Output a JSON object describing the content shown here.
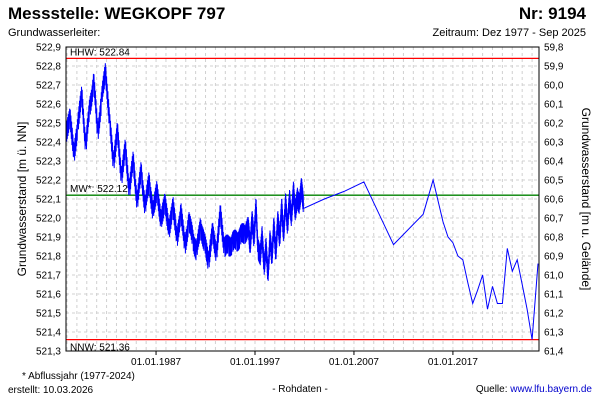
{
  "header": {
    "title": "Messstelle: WEGKOPF 797",
    "nr": "Nr: 9194",
    "aquifer_label": "Grundwasserleiter:",
    "period": "Zeitraum: Dez 1977 - Sep 2025"
  },
  "footer": {
    "footnote": "* Abflussjahr (1977-2024)",
    "created_label": "erstellt:",
    "created_date": "10.03.2026",
    "raw_note": "- Rohdaten -",
    "source_label": "Quelle:",
    "source_url": "www.lfu.bayern.de"
  },
  "chart_data": {
    "type": "line",
    "title": "Messstelle: WEGKOPF 797",
    "ylabel_left": "Grundwasserstand [m ü. NN]",
    "ylabel_right": "Grundwasserstand [m u. Gelände]",
    "x_range": [
      1977.9,
      2025.7
    ],
    "ylim": [
      521.3,
      522.9
    ],
    "x_ticks": [
      "01.01.1987",
      "01.01.1997",
      "01.01.2007",
      "01.01.2017"
    ],
    "y_ticks_left": [
      "521,3",
      "521,4",
      "521,5",
      "521,6",
      "521,7",
      "521,8",
      "521,9",
      "522,0",
      "522,1",
      "522,2",
      "522,3",
      "522,4",
      "522,5",
      "522,6",
      "522,7",
      "522,8",
      "522,9"
    ],
    "y_ticks_right": [
      "61,4",
      "61,3",
      "61,2",
      "61,1",
      "61,0",
      "60,9",
      "60,8",
      "60,7",
      "60,6",
      "60,5",
      "60,4",
      "60,3",
      "60,2",
      "60,1",
      "60,0",
      "59,9",
      "59,8"
    ],
    "grid": true,
    "colors": {
      "series": "#0000ff",
      "hhw": "#ff0000",
      "mw": "#008000",
      "nnw": "#ff0000",
      "grid": "#d0d0d0"
    },
    "reference_lines": [
      {
        "name": "HHW",
        "label": "HHW: 522.84",
        "value": 522.84
      },
      {
        "name": "MW",
        "label": "MW*: 522.12",
        "value": 522.12
      },
      {
        "name": "NNW",
        "label": "NNW: 521.36",
        "value": 521.36
      }
    ],
    "series": [
      {
        "x": [
          1977.9,
          1978.3,
          1978.7,
          1979.1,
          1979.5,
          1979.9,
          1980.3,
          1980.7,
          1981.1,
          1981.5,
          1981.9,
          1982.3,
          1982.7,
          1983.1,
          1983.5,
          1983.9,
          1984.3,
          1984.7,
          1985.1,
          1985.5,
          1985.9,
          1986.3,
          1986.7,
          1987.1,
          1987.5,
          1987.9,
          1988.3,
          1988.7,
          1989.1,
          1989.5,
          1989.9,
          1990.3,
          1990.7,
          1991.1,
          1991.5,
          1991.9,
          1992.3,
          1992.7,
          1993.1,
          1993.5,
          1993.9,
          1994.3,
          1994.7,
          1995.1,
          1995.5,
          1995.9,
          1996.3,
          1996.5,
          1996.7,
          1996.9,
          1997.1,
          1997.3,
          1997.5,
          1997.7,
          1997.9,
          1998.1,
          1998.3,
          1998.5,
          1998.7,
          1998.9,
          1999.1,
          1999.3,
          1999.5,
          1999.7,
          1999.9,
          2000.1,
          2000.3,
          2000.5,
          2000.7,
          2000.9,
          2001.1,
          2001.3,
          2001.5,
          2001.7,
          2001.9,
          2004.0,
          2006.0,
          2008.0,
          2011.0,
          2014.0,
          2015.0,
          2016.0,
          2016.5,
          2017.0,
          2017.5,
          2018.0,
          2018.5,
          2019.0,
          2019.5,
          2020.0,
          2020.5,
          2021.0,
          2021.5,
          2022.0,
          2022.5,
          2023.0,
          2023.5,
          2024.0,
          2024.5,
          2025.0,
          2025.6
        ],
        "y": [
          522.42,
          522.55,
          522.32,
          522.5,
          522.64,
          522.38,
          522.58,
          522.72,
          522.45,
          522.62,
          522.78,
          522.5,
          522.3,
          522.45,
          522.22,
          522.36,
          522.15,
          522.3,
          522.08,
          522.25,
          522.05,
          522.2,
          522.02,
          522.16,
          521.97,
          522.1,
          521.92,
          522.08,
          521.88,
          522.04,
          521.85,
          521.98,
          521.9,
          521.82,
          521.96,
          521.86,
          521.78,
          521.92,
          521.82,
          522.02,
          521.85,
          521.85,
          521.87,
          521.88,
          521.9,
          521.92,
          521.95,
          521.86,
          521.98,
          521.9,
          522.05,
          521.85,
          521.78,
          521.92,
          521.74,
          521.85,
          521.7,
          521.88,
          521.8,
          521.95,
          521.82,
          521.98,
          521.9,
          522.05,
          521.92,
          522.08,
          521.96,
          522.1,
          522.0,
          522.15,
          522.02,
          522.12,
          522.06,
          522.18,
          522.05,
          522.1,
          522.14,
          522.19,
          521.86,
          522.02,
          522.2,
          521.98,
          521.9,
          521.87,
          521.8,
          521.78,
          521.66,
          521.55,
          521.62,
          521.7,
          521.52,
          521.64,
          521.55,
          521.55,
          521.84,
          521.72,
          521.78,
          521.65,
          521.52,
          521.36,
          521.76
        ]
      }
    ]
  }
}
